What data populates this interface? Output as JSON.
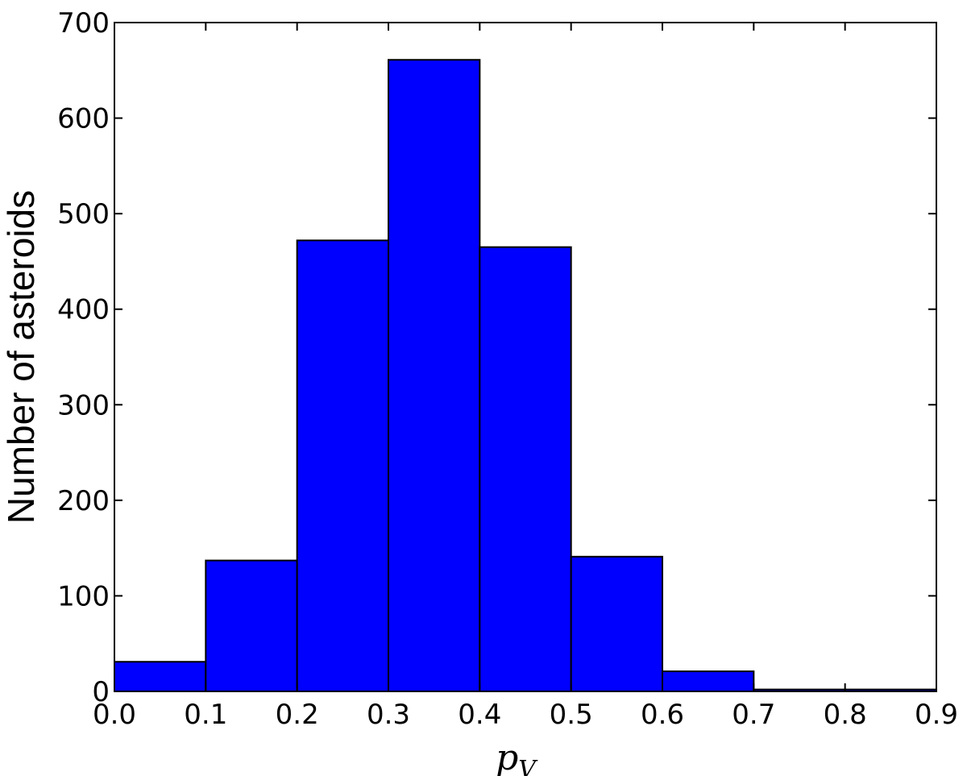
{
  "chart_data": {
    "type": "histogram",
    "xlabel": {
      "base": "p",
      "sub": "V"
    },
    "ylabel": "Number of asteroids",
    "bins": [
      0,
      0.1,
      0.2,
      0.3,
      0.4,
      0.5,
      0.6,
      0.7,
      0.8,
      0.9
    ],
    "values": [
      31,
      137,
      472,
      661,
      465,
      141,
      21,
      2,
      2
    ],
    "color": "#0000ff",
    "edgecolor": "#000000",
    "xlim": [
      0,
      0.9
    ],
    "ylim": [
      0,
      700
    ],
    "xticks": [
      {
        "value": 0,
        "label": "0.0"
      },
      0.1,
      0.2,
      0.3,
      0.4,
      0.5,
      0.6,
      0.7,
      0.8,
      0.9
    ],
    "yticks": [
      0,
      100,
      200,
      300,
      400,
      500,
      600,
      700
    ],
    "grid": false
  }
}
